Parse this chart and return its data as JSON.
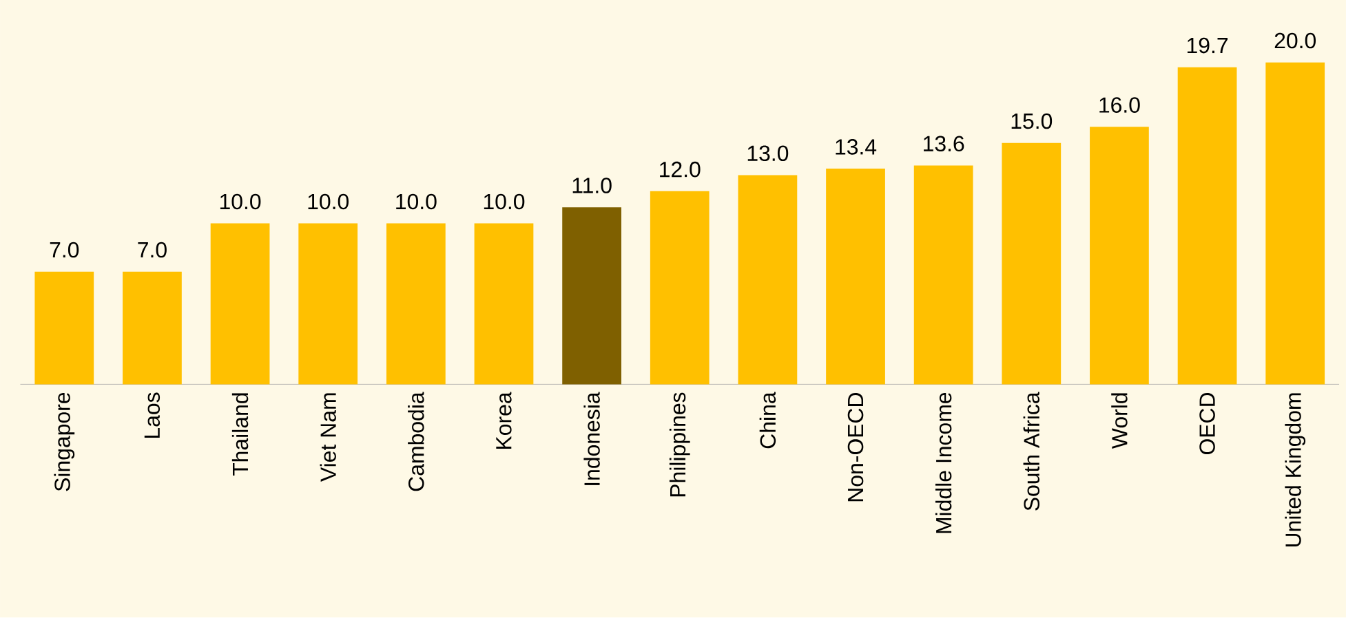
{
  "chart_data": {
    "type": "bar",
    "categories": [
      "Singapore",
      "Laos",
      "Thailand",
      "Viet Nam",
      "Cambodia",
      "Korea",
      "Indonesia",
      "Philippines",
      "China",
      "Non-OECD",
      "Middle Income",
      "South Africa",
      "World",
      "OECD",
      "United Kingdom"
    ],
    "values": [
      7.0,
      7.0,
      10.0,
      10.0,
      10.0,
      10.0,
      11.0,
      12.0,
      13.0,
      13.4,
      13.6,
      15.0,
      16.0,
      19.7,
      20.0
    ],
    "value_labels": [
      "7.0",
      "7.0",
      "10.0",
      "10.0",
      "10.0",
      "10.0",
      "11.0",
      "12.0",
      "13.0",
      "13.4",
      "13.6",
      "15.0",
      "16.0",
      "19.7",
      "20.0"
    ],
    "colors": [
      "#ffc000",
      "#ffc000",
      "#ffc000",
      "#ffc000",
      "#ffc000",
      "#ffc000",
      "#7f6000",
      "#ffc000",
      "#ffc000",
      "#ffc000",
      "#ffc000",
      "#ffc000",
      "#ffc000",
      "#ffc000",
      "#ffc000"
    ]
  }
}
